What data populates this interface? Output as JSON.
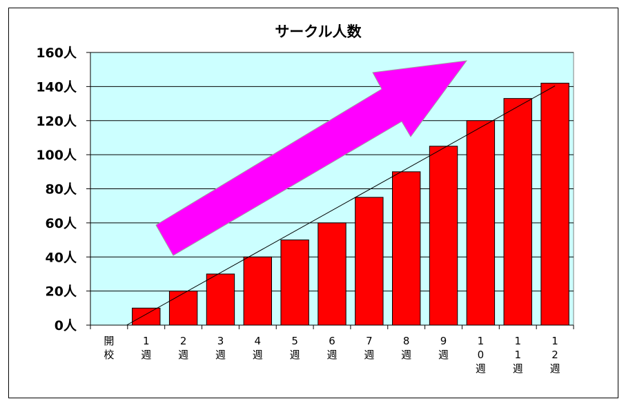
{
  "chart_data": {
    "type": "bar",
    "title": "サークル人数",
    "xlabel": "",
    "ylabel": "",
    "categories": [
      "開校",
      "1週",
      "2週",
      "3週",
      "4週",
      "5週",
      "6週",
      "7週",
      "8週",
      "9週",
      "10週",
      "11週",
      "12週"
    ],
    "values": [
      0,
      10,
      20,
      30,
      40,
      50,
      60,
      75,
      90,
      105,
      120,
      133,
      142
    ],
    "ylim": [
      0,
      160
    ],
    "yticks": [
      0,
      20,
      40,
      60,
      80,
      100,
      120,
      140,
      160
    ],
    "ytick_suffix": "人",
    "trendline": {
      "type": "linear"
    },
    "annotation": "upward-arrow",
    "grid": true,
    "legend": "none",
    "colors": {
      "bar": "#ff0000",
      "bar_edge": "#000000",
      "plot_background": "#ccffff",
      "arrow": "#ff00ff",
      "trendline": "#000000"
    }
  }
}
